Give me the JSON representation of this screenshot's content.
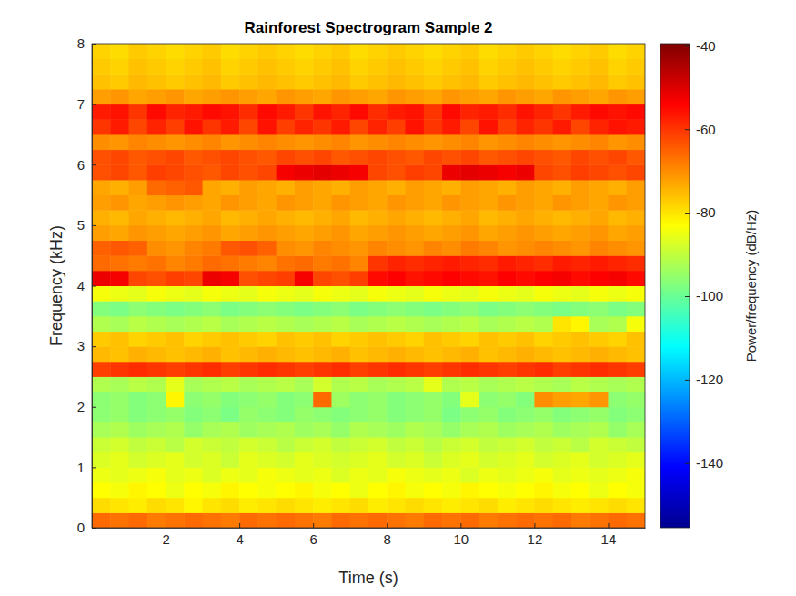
{
  "chart_data": {
    "type": "heatmap",
    "title": "Rainforest Spectrogram Sample 2",
    "x_label": "Time (s)",
    "y_label": "Frequency (kHz)",
    "xlim": [
      0,
      15
    ],
    "xticks": [
      2,
      4,
      6,
      8,
      10,
      12,
      14
    ],
    "ylim": [
      0,
      8
    ],
    "yticks": [
      0,
      1,
      2,
      3,
      4,
      5,
      6,
      7,
      8
    ],
    "x_bins": [
      0,
      0.5,
      1,
      1.5,
      2,
      2.5,
      3,
      3.5,
      4,
      4.5,
      5,
      5.5,
      6,
      6.5,
      7,
      7.5,
      8,
      8.5,
      9,
      9.5,
      10,
      10.5,
      11,
      11.5,
      12,
      12.5,
      13,
      13.5,
      14,
      14.5,
      15
    ],
    "y_bins": [
      0,
      0.25,
      0.5,
      0.75,
      1,
      1.25,
      1.5,
      1.75,
      2,
      2.25,
      2.5,
      2.75,
      3,
      3.25,
      3.5,
      3.75,
      4,
      4.25,
      4.5,
      4.75,
      5,
      5.25,
      5.5,
      5.75,
      6,
      6.25,
      6.5,
      6.75,
      7,
      7.25,
      7.5,
      7.75,
      8
    ],
    "z": [
      [
        -66,
        -67,
        -66,
        -68,
        -67,
        -66,
        -67,
        -68,
        -66,
        -67,
        -66,
        -67,
        -68,
        -66,
        -67,
        -66,
        -67,
        -68,
        -66,
        -67,
        -66,
        -68,
        -67,
        -66,
        -67,
        -66,
        -68,
        -67,
        -66,
        -67
      ],
      [
        -79,
        -80,
        -81,
        -79,
        -80,
        -82,
        -80,
        -79,
        -81,
        -80,
        -79,
        -80,
        -81,
        -80,
        -79,
        -81,
        -80,
        -79,
        -80,
        -81,
        -80,
        -79,
        -81,
        -80,
        -79,
        -80,
        -81,
        -80,
        -79,
        -80
      ],
      [
        -83,
        -84,
        -82,
        -83,
        -85,
        -83,
        -84,
        -82,
        -83,
        -84,
        -83,
        -82,
        -84,
        -83,
        -85,
        -83,
        -82,
        -84,
        -83,
        -84,
        -82,
        -83,
        -84,
        -83,
        -82,
        -84,
        -83,
        -85,
        -83,
        -84
      ],
      [
        -85,
        -86,
        -85,
        -84,
        -86,
        -85,
        -87,
        -85,
        -86,
        -84,
        -85,
        -86,
        -85,
        -87,
        -85,
        -86,
        -84,
        -85,
        -86,
        -85,
        -87,
        -85,
        -86,
        -85,
        -84,
        -86,
        -85,
        -86,
        -85,
        -84
      ],
      [
        -87,
        -86,
        -88,
        -87,
        -86,
        -88,
        -87,
        -89,
        -86,
        -87,
        -88,
        -86,
        -87,
        -88,
        -87,
        -86,
        -88,
        -87,
        -89,
        -87,
        -86,
        -88,
        -87,
        -86,
        -88,
        -87,
        -86,
        -88,
        -87,
        -86
      ],
      [
        -89,
        -88,
        -90,
        -89,
        -91,
        -88,
        -89,
        -90,
        -88,
        -89,
        -91,
        -89,
        -88,
        -90,
        -89,
        -88,
        -90,
        -89,
        -91,
        -89,
        -88,
        -90,
        -89,
        -88,
        -90,
        -89,
        -91,
        -88,
        -89,
        -90
      ],
      [
        -93,
        -92,
        -94,
        -93,
        -92,
        -95,
        -93,
        -92,
        -94,
        -93,
        -92,
        -94,
        -93,
        -95,
        -92,
        -93,
        -94,
        -92,
        -93,
        -95,
        -93,
        -92,
        -94,
        -93,
        -92,
        -94,
        -93,
        -92,
        -95,
        -93
      ],
      [
        -96,
        -95,
        -97,
        -96,
        -95,
        -97,
        -96,
        -98,
        -95,
        -96,
        -97,
        -95,
        -96,
        -97,
        -96,
        -95,
        -97,
        -96,
        -95,
        -98,
        -96,
        -95,
        -97,
        -96,
        -95,
        -97,
        -96,
        -95,
        -97,
        -96
      ],
      [
        -96,
        -95,
        -97,
        -96,
        -82,
        -96,
        -95,
        -97,
        -96,
        -95,
        -97,
        -96,
        -66,
        -94,
        -96,
        -95,
        -97,
        -96,
        -95,
        -97,
        -86,
        -96,
        -95,
        -97,
        -70,
        -72,
        -73,
        -71,
        -96,
        -95
      ],
      [
        -92,
        -93,
        -91,
        -92,
        -86,
        -93,
        -92,
        -91,
        -93,
        -92,
        -91,
        -93,
        -88,
        -92,
        -91,
        -93,
        -92,
        -91,
        -86,
        -92,
        -91,
        -93,
        -92,
        -91,
        -92,
        -93,
        -91,
        -92,
        -93,
        -92
      ],
      [
        -61,
        -60,
        -59,
        -60,
        -61,
        -60,
        -59,
        -61,
        -60,
        -59,
        -60,
        -61,
        -60,
        -59,
        -61,
        -60,
        -59,
        -60,
        -61,
        -60,
        -59,
        -60,
        -61,
        -60,
        -59,
        -61,
        -60,
        -59,
        -60,
        -61
      ],
      [
        -75,
        -76,
        -74,
        -75,
        -76,
        -75,
        -74,
        -76,
        -75,
        -74,
        -75,
        -76,
        -75,
        -74,
        -76,
        -75,
        -74,
        -75,
        -76,
        -75,
        -74,
        -76,
        -75,
        -74,
        -75,
        -76,
        -75,
        -74,
        -75,
        -76
      ],
      [
        -77,
        -76,
        -78,
        -77,
        -76,
        -78,
        -77,
        -76,
        -77,
        -78,
        -76,
        -77,
        -76,
        -78,
        -77,
        -76,
        -77,
        -78,
        -76,
        -77,
        -78,
        -76,
        -77,
        -76,
        -78,
        -77,
        -76,
        -77,
        -78,
        -76
      ],
      [
        -92,
        -93,
        -91,
        -92,
        -93,
        -92,
        -91,
        -93,
        -92,
        -91,
        -92,
        -93,
        -92,
        -91,
        -93,
        -92,
        -91,
        -92,
        -93,
        -92,
        -91,
        -93,
        -92,
        -91,
        -92,
        -80,
        -82,
        -93,
        -92,
        -84
      ],
      [
        -97,
        -98,
        -96,
        -97,
        -98,
        -97,
        -96,
        -98,
        -97,
        -96,
        -97,
        -98,
        -97,
        -96,
        -98,
        -97,
        -96,
        -97,
        -98,
        -97,
        -96,
        -98,
        -97,
        -96,
        -97,
        -98,
        -97,
        -96,
        -98,
        -97
      ],
      [
        -84,
        -85,
        -86,
        -84,
        -85,
        -86,
        -84,
        -85,
        -86,
        -84,
        -85,
        -86,
        -84,
        -85,
        -86,
        -84,
        -85,
        -86,
        -84,
        -85,
        -86,
        -84,
        -85,
        -86,
        -84,
        -85,
        -86,
        -84,
        -85,
        -84
      ],
      [
        -52,
        -53,
        -62,
        -63,
        -61,
        -62,
        -52,
        -53,
        -63,
        -62,
        -61,
        -53,
        -62,
        -63,
        -61,
        -55,
        -54,
        -56,
        -55,
        -54,
        -55,
        -56,
        -54,
        -55,
        -54,
        -53,
        -55,
        -54,
        -53,
        -55
      ],
      [
        -66,
        -67,
        -68,
        -67,
        -69,
        -68,
        -66,
        -67,
        -68,
        -69,
        -67,
        -66,
        -68,
        -67,
        -69,
        -60,
        -58,
        -59,
        -58,
        -57,
        -58,
        -59,
        -57,
        -58,
        -59,
        -57,
        -58,
        -57,
        -58,
        -59
      ],
      [
        -65,
        -64,
        -65,
        -70,
        -71,
        -69,
        -68,
        -64,
        -63,
        -65,
        -70,
        -71,
        -69,
        -70,
        -71,
        -69,
        -70,
        -71,
        -69,
        -70,
        -68,
        -69,
        -71,
        -70,
        -69,
        -70,
        -71,
        -69,
        -70,
        -71
      ],
      [
        -72,
        -73,
        -71,
        -72,
        -73,
        -72,
        -71,
        -73,
        -72,
        -71,
        -72,
        -73,
        -72,
        -71,
        -73,
        -72,
        -71,
        -72,
        -73,
        -72,
        -71,
        -73,
        -72,
        -71,
        -72,
        -73,
        -72,
        -71,
        -73,
        -72
      ],
      [
        -74,
        -75,
        -73,
        -74,
        -75,
        -74,
        -73,
        -75,
        -74,
        -73,
        -74,
        -75,
        -74,
        -73,
        -75,
        -74,
        -73,
        -74,
        -75,
        -74,
        -73,
        -75,
        -74,
        -73,
        -74,
        -75,
        -74,
        -73,
        -75,
        -74
      ],
      [
        -72,
        -71,
        -73,
        -72,
        -71,
        -72,
        -73,
        -71,
        -72,
        -73,
        -71,
        -72,
        -73,
        -71,
        -72,
        -73,
        -71,
        -72,
        -73,
        -71,
        -72,
        -73,
        -71,
        -72,
        -73,
        -71,
        -72,
        -73,
        -71,
        -72
      ],
      [
        -73,
        -74,
        -72,
        -66,
        -65,
        -64,
        -73,
        -74,
        -72,
        -73,
        -74,
        -72,
        -73,
        -74,
        -72,
        -73,
        -74,
        -72,
        -73,
        -74,
        -72,
        -73,
        -74,
        -72,
        -73,
        -74,
        -72,
        -73,
        -74,
        -72
      ],
      [
        -63,
        -62,
        -64,
        -61,
        -62,
        -63,
        -64,
        -62,
        -63,
        -62,
        -53,
        -52,
        -51,
        -52,
        -53,
        -62,
        -63,
        -61,
        -62,
        -52,
        -51,
        -52,
        -53,
        -52,
        -62,
        -63,
        -61,
        -62,
        -63,
        -62
      ],
      [
        -63,
        -62,
        -64,
        -63,
        -62,
        -64,
        -63,
        -62,
        -63,
        -64,
        -62,
        -63,
        -62,
        -64,
        -63,
        -62,
        -63,
        -64,
        -62,
        -63,
        -62,
        -64,
        -63,
        -62,
        -63,
        -64,
        -62,
        -63,
        -62,
        -64
      ],
      [
        -70,
        -71,
        -69,
        -70,
        -71,
        -70,
        -69,
        -71,
        -70,
        -69,
        -70,
        -71,
        -70,
        -69,
        -71,
        -70,
        -69,
        -70,
        -71,
        -70,
        -69,
        -71,
        -70,
        -69,
        -70,
        -71,
        -70,
        -69,
        -71,
        -70
      ],
      [
        -60,
        -57,
        -62,
        -58,
        -61,
        -56,
        -60,
        -57,
        -62,
        -56,
        -61,
        -58,
        -60,
        -57,
        -62,
        -58,
        -61,
        -56,
        -60,
        -57,
        -62,
        -56,
        -61,
        -58,
        -60,
        -57,
        -62,
        -58,
        -56,
        -57
      ],
      [
        -57,
        -56,
        -60,
        -55,
        -58,
        -57,
        -55,
        -56,
        -59,
        -55,
        -57,
        -60,
        -56,
        -58,
        -55,
        -59,
        -57,
        -56,
        -60,
        -55,
        -58,
        -57,
        -59,
        -56,
        -58,
        -60,
        -57,
        -55,
        -56,
        -55
      ],
      [
        -72,
        -71,
        -73,
        -72,
        -71,
        -73,
        -72,
        -71,
        -72,
        -73,
        -71,
        -72,
        -73,
        -71,
        -72,
        -73,
        -71,
        -72,
        -73,
        -71,
        -72,
        -73,
        -71,
        -72,
        -73,
        -71,
        -72,
        -73,
        -71,
        -72
      ],
      [
        -76,
        -77,
        -75,
        -76,
        -77,
        -76,
        -75,
        -77,
        -76,
        -75,
        -76,
        -77,
        -76,
        -75,
        -77,
        -76,
        -75,
        -76,
        -77,
        -76,
        -75,
        -77,
        -76,
        -75,
        -76,
        -77,
        -76,
        -75,
        -77,
        -76
      ],
      [
        -77,
        -78,
        -76,
        -77,
        -78,
        -77,
        -76,
        -78,
        -77,
        -76,
        -77,
        -78,
        -77,
        -76,
        -78,
        -77,
        -76,
        -77,
        -78,
        -77,
        -76,
        -78,
        -77,
        -76,
        -77,
        -78,
        -77,
        -76,
        -78,
        -77
      ],
      [
        -78,
        -79,
        -77,
        -78,
        -79,
        -78,
        -77,
        -79,
        -78,
        -77,
        -78,
        -79,
        -78,
        -77,
        -79,
        -78,
        -77,
        -78,
        -79,
        -78,
        -77,
        -79,
        -78,
        -77,
        -78,
        -79,
        -78,
        -77,
        -79,
        -78
      ]
    ],
    "colorbar": {
      "label": "Power/frequency (dB/Hz)",
      "lim": [
        -155.5,
        -39.5
      ],
      "ticks": [
        -140,
        -120,
        -100,
        -80,
        -60,
        -40
      ]
    }
  }
}
